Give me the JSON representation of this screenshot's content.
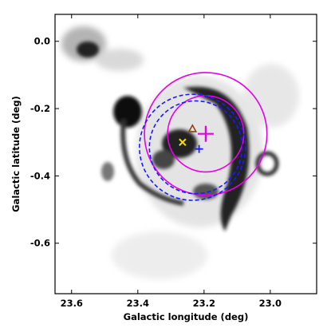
{
  "chart_data": {
    "type": "scatter",
    "xlabel": "Galactic longitude (deg)",
    "ylabel": "Galactic latitude (deg)",
    "xlim": [
      23.65,
      22.86
    ],
    "ylim": [
      -0.75,
      0.08
    ],
    "x_ticks": [
      23.6,
      23.4,
      23.2,
      23.0
    ],
    "x_tick_labels": [
      "23.6",
      "23.4",
      "23.2",
      "23.0"
    ],
    "y_ticks": [
      0.0,
      -0.2,
      -0.4,
      -0.6
    ],
    "y_tick_labels": [
      "0.0",
      "-0.2",
      "-0.4",
      "-0.6"
    ],
    "background": "greyscale emission map (dark = bright emission): shell structure around l=23.2, b=-0.3, small ring near l=23.0 b=-0.35, clump near l=23.55 b=0.0",
    "circles": [
      {
        "cx": 23.195,
        "cy": -0.275,
        "r": 0.185,
        "color": "#e600e6",
        "style": "solid"
      },
      {
        "cx": 23.195,
        "cy": -0.275,
        "r": 0.115,
        "color": "#e600e6",
        "style": "solid"
      },
      {
        "cx": 23.225,
        "cy": -0.315,
        "r": 0.14,
        "color": "#1a1aff",
        "style": "dashed"
      },
      {
        "cx": 23.235,
        "cy": -0.315,
        "r": 0.16,
        "color": "#1a1aff",
        "style": "dashed"
      }
    ],
    "markers": [
      {
        "x": 23.195,
        "y": -0.275,
        "symbol": "plus-large",
        "color": "#e600e6"
      },
      {
        "x": 23.215,
        "y": -0.32,
        "symbol": "plus",
        "color": "#1a1aff"
      },
      {
        "x": 23.265,
        "y": -0.3,
        "symbol": "x",
        "color": "#ffd700"
      },
      {
        "x": 23.235,
        "y": -0.26,
        "symbol": "triangle",
        "color": "#8b4513"
      }
    ]
  }
}
